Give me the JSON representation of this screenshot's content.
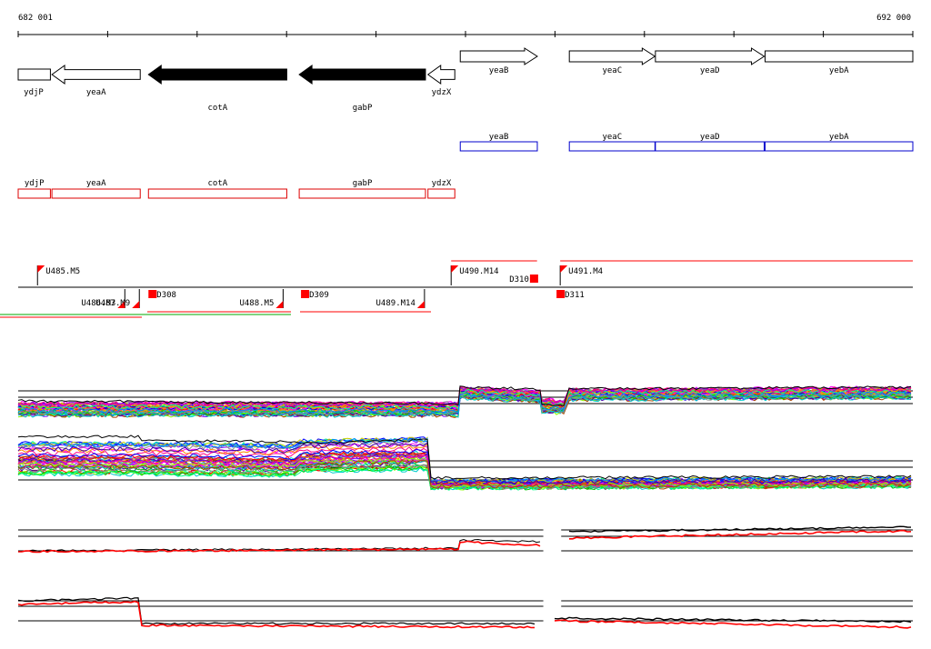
{
  "ruler": {
    "start_label": "682 001",
    "end_label": "692 000",
    "start_bp": 682001,
    "end_bp": 692000
  },
  "colors": {
    "line": "#000000",
    "filled_gene": "#000000",
    "operon_blue": "#0000cc",
    "operon_red": "#dd0000",
    "marker_red": "#ff0000",
    "series_palette": [
      "#ff0000",
      "#00cc00",
      "#0000ff",
      "#ff00ff",
      "#00cccc",
      "#cccc00",
      "#ff8800",
      "#8800ff",
      "#00ff88",
      "#888888",
      "#ff0088",
      "#0088ff",
      "#88ff00",
      "#aa4400",
      "#4400aa"
    ]
  },
  "genes": [
    {
      "name": "ydjP",
      "start": 682001,
      "end": 682361,
      "strand": "none",
      "filled": false
    },
    {
      "name": "yeaA",
      "start": 682378,
      "end": 683365,
      "strand": "-",
      "filled": false
    },
    {
      "name": "cotA",
      "start": 683457,
      "end": 685003,
      "strand": "-",
      "filled": true
    },
    {
      "name": "gabP",
      "start": 685142,
      "end": 686553,
      "strand": "-",
      "filled": true
    },
    {
      "name": "ydzX",
      "start": 686581,
      "end": 686881,
      "strand": "-",
      "filled": false
    },
    {
      "name": "yeaB",
      "start": 686942,
      "end": 687803,
      "strand": "+",
      "filled": false
    },
    {
      "name": "yeaC",
      "start": 688161,
      "end": 689118,
      "strand": "+",
      "filled": false
    },
    {
      "name": "yeaD",
      "start": 689123,
      "end": 690339,
      "strand": "+",
      "filled": false
    },
    {
      "name": "yebA",
      "start": 690349,
      "end": 692000,
      "strand": "none",
      "filled": false
    }
  ],
  "operons_blue": [
    {
      "name": "yeaB",
      "start": 686942,
      "end": 687803
    },
    {
      "name": "yeaC",
      "start": 688161,
      "end": 689118
    },
    {
      "name": "yeaD",
      "start": 689123,
      "end": 690339
    },
    {
      "name": "yebA",
      "start": 690349,
      "end": 692000
    }
  ],
  "operons_red": [
    {
      "name": "ydjP",
      "start": 682001,
      "end": 682361
    },
    {
      "name": "yeaA",
      "start": 682378,
      "end": 683365
    },
    {
      "name": "cotA",
      "start": 683457,
      "end": 685003
    },
    {
      "name": "gabP",
      "start": 685142,
      "end": 686553
    },
    {
      "name": "ydzX",
      "start": 686581,
      "end": 686881
    }
  ],
  "transcription_units": [
    {
      "label": "U485.M5",
      "strand": "+",
      "pos": 682217
    },
    {
      "label": "U490.M14",
      "strand": "+",
      "pos": 686840
    },
    {
      "label": "U491.M4",
      "strand": "+",
      "pos": 688059
    },
    {
      "label": "U486.M3",
      "strand": "-",
      "pos": 683193
    },
    {
      "label": "U487.M9",
      "strand": "-",
      "pos": 683355
    },
    {
      "label": "U488.M5",
      "strand": "-",
      "pos": 684962
    },
    {
      "label": "U489.M14",
      "strand": "-",
      "pos": 686542
    }
  ],
  "downshift_markers": [
    {
      "label": "D308",
      "pos": 683457,
      "side": "below"
    },
    {
      "label": "D309",
      "pos": 685162,
      "side": "below"
    },
    {
      "label": "D310",
      "pos": 687721,
      "side": "above"
    },
    {
      "label": "D311",
      "pos": 688018,
      "side": "below"
    }
  ],
  "panel_breaks": {
    "break_a_bp": 687870,
    "break_b_bp": 688070
  }
}
